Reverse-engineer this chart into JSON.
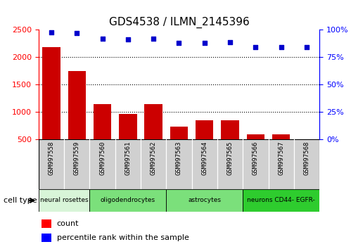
{
  "title": "GDS4538 / ILMN_2145396",
  "samples": [
    "GSM997558",
    "GSM997559",
    "GSM997560",
    "GSM997561",
    "GSM997562",
    "GSM997563",
    "GSM997564",
    "GSM997565",
    "GSM997566",
    "GSM997567",
    "GSM997568"
  ],
  "counts": [
    2180,
    1750,
    1140,
    970,
    1140,
    740,
    855,
    845,
    590,
    590,
    500
  ],
  "percentiles": [
    98,
    97,
    92,
    91,
    92,
    88,
    88,
    89,
    84,
    84,
    84
  ],
  "cell_types": [
    {
      "label": "neural rosettes",
      "start": 0,
      "end": 2,
      "color": "#d8f5d8"
    },
    {
      "label": "oligodendrocytes",
      "start": 2,
      "end": 5,
      "color": "#7be07b"
    },
    {
      "label": "astrocytes",
      "start": 5,
      "end": 8,
      "color": "#7be07b"
    },
    {
      "label": "neurons CD44- EGFR-",
      "start": 8,
      "end": 11,
      "color": "#2ecc2e"
    }
  ],
  "bar_color": "#cc0000",
  "dot_color": "#0000cc",
  "ylim_left": [
    500,
    2500
  ],
  "ylim_right": [
    0,
    100
  ],
  "yticks_left": [
    500,
    1000,
    1500,
    2000,
    2500
  ],
  "yticks_right": [
    0,
    25,
    50,
    75,
    100
  ],
  "grid_lines": [
    1000,
    1500,
    2000
  ],
  "legend_count_label": "count",
  "legend_pct_label": "percentile rank within the sample",
  "cell_type_label": "cell type",
  "sample_box_color": "#d0d0d0",
  "plot_bg": "white",
  "outer_bg": "white"
}
